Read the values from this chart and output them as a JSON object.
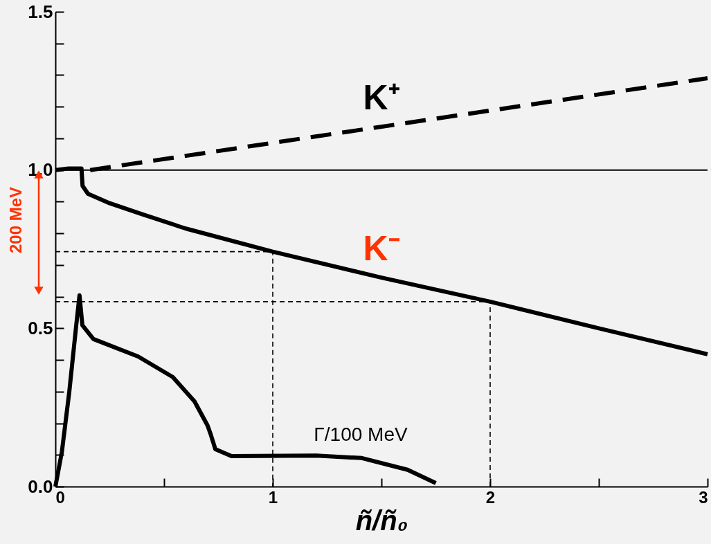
{
  "chart_data": {
    "type": "line",
    "xlabel": "ñ/ñ₀",
    "xlim": [
      0,
      3
    ],
    "ylim": [
      0,
      1.5
    ],
    "xticks": [
      0,
      {
        "value": 0.5,
        "label": null
      },
      1,
      {
        "value": 1.5,
        "label": null
      },
      2,
      {
        "value": 2.5,
        "label": null
      },
      3
    ],
    "yticks": [
      {
        "value": 0,
        "label": "0.0"
      },
      {
        "value": 0.1,
        "label": null
      },
      {
        "value": 0.2,
        "label": null
      },
      {
        "value": 0.3,
        "label": null
      },
      {
        "value": 0.4,
        "label": null
      },
      {
        "value": 0.5,
        "label": "0.5"
      },
      {
        "value": 0.6,
        "label": null
      },
      {
        "value": 0.7,
        "label": null
      },
      {
        "value": 0.8,
        "label": null
      },
      {
        "value": 0.9,
        "label": null
      },
      {
        "value": 1.0,
        "label": "1.0"
      },
      {
        "value": 1.1,
        "label": null
      },
      {
        "value": 1.2,
        "label": null
      },
      {
        "value": 1.3,
        "label": null
      },
      {
        "value": 1.4,
        "label": null
      },
      {
        "value": 1.5,
        "label": "1.5"
      }
    ],
    "grid": false,
    "marker": "none",
    "ref_lines": [
      {
        "axis": "y",
        "value": 1.0,
        "color": "#000000",
        "line_style": "solid"
      }
    ],
    "annotations": [
      "200 MeV"
    ],
    "series": [
      {
        "name": "K⁺",
        "color": "#000000",
        "line_style": "dashed",
        "x": [
          0.16,
          3
        ],
        "values": [
          1.0,
          1.29
        ]
      },
      {
        "name": "K⁻",
        "color": "#000000",
        "line_style": "solid",
        "x": [
          0,
          0.06,
          0.12,
          0.125,
          0.15,
          0.25,
          0.4,
          0.6,
          1.0,
          1.5,
          2.0,
          2.5,
          3
        ],
        "values": [
          1.0,
          1.005,
          1.005,
          0.95,
          0.925,
          0.895,
          0.86,
          0.815,
          0.742,
          0.66,
          0.584,
          0.5,
          0.418
        ]
      },
      {
        "name": "Γ/100 MeV",
        "color": "#000000",
        "line_style": "solid",
        "x": [
          0,
          0.03,
          0.064,
          0.096,
          0.111,
          0.124,
          0.175,
          0.38,
          0.54,
          0.64,
          0.7,
          0.713,
          0.736,
          0.81,
          1.2,
          1.41,
          1.62,
          1.75
        ],
        "values": [
          0,
          0.11,
          0.3,
          0.51,
          0.604,
          0.51,
          0.466,
          0.411,
          0.346,
          0.269,
          0.193,
          0.168,
          0.118,
          0.096,
          0.098,
          0.09,
          0.053,
          0.011
        ]
      },
      {
        "color": "#000000",
        "line_style": "dashed",
        "x": [
          0,
          1,
          1
        ],
        "values": [
          0.742,
          0.742,
          0
        ]
      },
      {
        "color": "#000000",
        "line_style": "dashed",
        "x": [
          0,
          2,
          2
        ],
        "values": [
          0.584,
          0.584,
          0
        ]
      }
    ]
  }
}
